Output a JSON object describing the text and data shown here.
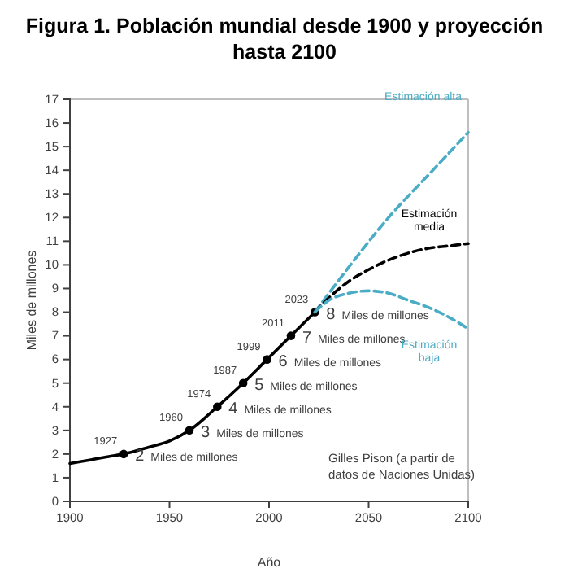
{
  "chart_data": {
    "type": "line",
    "title": "Figura 1. Población mundial desde 1900 y proyección hasta 2100",
    "xlabel": "Año",
    "ylabel": "Miles de millones",
    "xlim": [
      1900,
      2100
    ],
    "xticks": [
      1900,
      1950,
      2000,
      2050,
      2100
    ],
    "ylim": [
      0,
      17
    ],
    "yticks": [
      0,
      1,
      2,
      3,
      4,
      5,
      6,
      7,
      8,
      9,
      10,
      11,
      12,
      13,
      14,
      15,
      16,
      17
    ],
    "grid": false,
    "series": [
      {
        "color": "#000000",
        "line_style": "solid",
        "marker": "none",
        "x": [
          1900,
          1910,
          1920,
          1927,
          1940,
          1950,
          1960,
          1974,
          1987,
          1999,
          2011,
          2023
        ],
        "values": [
          1.6,
          1.75,
          1.9,
          2,
          2.3,
          2.55,
          3,
          4,
          5,
          6,
          7,
          8
        ]
      },
      {
        "type": "scatter",
        "color": "#000000",
        "marker": "circle",
        "x": [
          1927,
          1960,
          1974,
          1987,
          1999,
          2011,
          2023
        ],
        "values": [
          2,
          3,
          4,
          5,
          6,
          7,
          8
        ],
        "value_labels": [
          "2 Miles de millones",
          "3 Miles de millones",
          "4 Miles de millones",
          "5 Miles de millones",
          "6 Miles de millones",
          "7 Miles de millones",
          "8 Miles de millones"
        ]
      },
      {
        "name": "Estimación alta",
        "color": "#4bacc6",
        "line_style": "dashed",
        "marker": "none",
        "x": [
          2023,
          2040,
          2060,
          2080,
          2100
        ],
        "values": [
          8,
          9.9,
          12,
          13.8,
          15.6
        ]
      },
      {
        "name": "Estimación media",
        "color": "#000000",
        "line_style": "dashed",
        "marker": "none",
        "x": [
          2023,
          2030,
          2040,
          2050,
          2060,
          2070,
          2080,
          2090,
          2100
        ],
        "values": [
          8,
          8.6,
          9.3,
          9.8,
          10.2,
          10.5,
          10.7,
          10.8,
          10.9
        ]
      },
      {
        "name": "Estimación baja",
        "color": "#4bacc6",
        "line_style": "dashed",
        "marker": "none",
        "x": [
          2023,
          2030,
          2040,
          2050,
          2060,
          2070,
          2080,
          2090,
          2100
        ],
        "values": [
          8,
          8.5,
          8.8,
          8.9,
          8.8,
          8.5,
          8.2,
          7.8,
          7.3
        ]
      }
    ],
    "annotations": [
      {
        "text": "1927",
        "x": 1927,
        "y": 2
      },
      {
        "text": "1960",
        "x": 1960,
        "y": 3
      },
      {
        "text": "1974",
        "x": 1974,
        "y": 4
      },
      {
        "text": "1987",
        "x": 1987,
        "y": 5
      },
      {
        "text": "1999",
        "x": 1999,
        "y": 6
      },
      {
        "text": "2011",
        "x": 2011,
        "y": 7
      },
      {
        "text": "2023",
        "x": 2023,
        "y": 8
      },
      "Gilles Pison (a partir de datos de Naciones Unidas)"
    ]
  }
}
